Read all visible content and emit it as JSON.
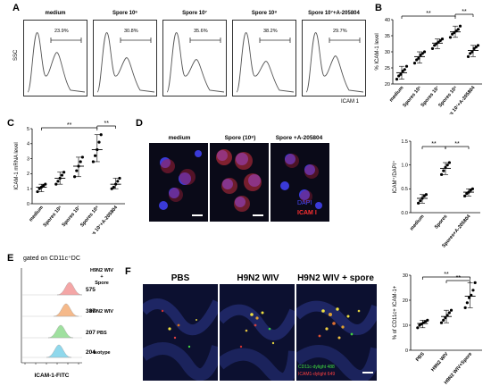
{
  "panels": {
    "A": "A",
    "B": "B",
    "C": "C",
    "D": "D",
    "E": "E",
    "F": "F"
  },
  "panelA": {
    "ylabel": "SSC",
    "xlabel": "ICAM 1",
    "plots": [
      {
        "title": "medium",
        "pct": "23.9%"
      },
      {
        "title": "Spore 10⁶",
        "pct": "30.8%"
      },
      {
        "title": "Spore 10⁷",
        "pct": "35.6%"
      },
      {
        "title": "Spore 10⁸",
        "pct": "38.2%"
      },
      {
        "title": "Spore 10⁷+A-205804",
        "pct": "29.7%"
      }
    ]
  },
  "panelB": {
    "ylabel": "% ICAM-1 level",
    "sig": [
      "**",
      "**"
    ],
    "yticks": [
      "20",
      "25",
      "30",
      "35",
      "40"
    ],
    "categories": [
      "medium",
      "Spores 10⁶",
      "Spores 10⁷",
      "Spores 10⁸",
      "Spores 10⁷+A-205804"
    ]
  },
  "panelC": {
    "ylabel": "ICAM-1 mRNA level",
    "sig": [
      "**",
      "**"
    ],
    "yticks": [
      "0",
      "1",
      "2",
      "3",
      "4",
      "5"
    ],
    "categories": [
      "medium",
      "Spores 10⁶",
      "Spores 10⁷",
      "Spores 10⁸",
      "Spores 10⁷+A-205804"
    ]
  },
  "panelD": {
    "titles": [
      "medium",
      "Spore (10⁸)",
      "Spore +A-205804"
    ],
    "legend_dapi": "DAPI",
    "legend_icam": "ICAM I",
    "ylabel": "ICAM⁺/DAPI⁺",
    "sig": [
      "**",
      "**"
    ],
    "yticks": [
      "0.0",
      "0.5",
      "1.0",
      "1.5"
    ],
    "categories": [
      "medium",
      "Spores",
      "Spores+A-205804"
    ]
  },
  "panelE": {
    "title": "gated on CD11c⁺DC",
    "xlabel": "ICAM-1-FITC",
    "rows": [
      {
        "value": "575",
        "label": "H9N2 WIV + Spore",
        "color": "#f4a6a6"
      },
      {
        "value": "387",
        "label": "H9N2 WIV",
        "color": "#f5b98a"
      },
      {
        "value": "207",
        "label": "PBS",
        "color": "#9fe09f"
      },
      {
        "value": "204",
        "label": "Isotype",
        "color": "#8fd8ec"
      }
    ]
  },
  "panelF": {
    "titles": [
      "PBS",
      "H9N2 WIV",
      "H9N2 WIV + spore"
    ],
    "legend_cd11c": "CD11c-dylight 488",
    "legend_icam": "ICAM1-dylight 649",
    "ylabel": "% of CD11c+ ICAM-1+",
    "sig": [
      "**",
      "**"
    ],
    "yticks": [
      "0",
      "10",
      "20",
      "30"
    ],
    "categories": [
      "PBS",
      "H9N2 WIV",
      "H9N2 WIV+Spore"
    ]
  },
  "chart_data": [
    {
      "type": "scatter",
      "panel": "B",
      "categories": [
        "medium",
        "Spores 10⁶",
        "Spores 10⁷",
        "Spores 10⁸",
        "Spores 10⁷+A-205804"
      ],
      "ylim": [
        20,
        40
      ],
      "points": [
        [
          21.5,
          22.5,
          23,
          24,
          24.5,
          25.5
        ],
        [
          26.5,
          27.5,
          28,
          29,
          29.5,
          30
        ],
        [
          31,
          32,
          32.5,
          33,
          33.5,
          34
        ],
        [
          34.5,
          35.5,
          36,
          36.5,
          37,
          38
        ],
        [
          28.5,
          29.5,
          30,
          31,
          31.5,
          32
        ]
      ],
      "means": [
        23.5,
        28.5,
        32.7,
        36.2,
        30.4
      ]
    },
    {
      "type": "scatter",
      "panel": "C",
      "categories": [
        "medium",
        "Spores 10⁶",
        "Spores 10⁷",
        "Spores 10⁸",
        "Spores 10⁷+A-205804"
      ],
      "ylim": [
        0,
        5
      ],
      "points": [
        [
          0.8,
          1.0,
          1.1,
          1.2,
          1.3
        ],
        [
          1.3,
          1.5,
          1.7,
          1.9,
          2.1
        ],
        [
          1.8,
          2.2,
          2.5,
          2.8,
          3.1
        ],
        [
          2.8,
          3.2,
          3.6,
          4.1,
          4.6
        ],
        [
          1.0,
          1.1,
          1.3,
          1.5,
          1.7
        ]
      ],
      "means": [
        1.1,
        1.7,
        2.5,
        3.6,
        1.3
      ]
    },
    {
      "type": "scatter",
      "panel": "D",
      "categories": [
        "medium",
        "Spores",
        "Spores+A-205804"
      ],
      "ylim": [
        0,
        1.5
      ],
      "points": [
        [
          0.2,
          0.25,
          0.3,
          0.35,
          0.38
        ],
        [
          0.8,
          0.88,
          0.95,
          1.0,
          1.05
        ],
        [
          0.35,
          0.4,
          0.43,
          0.47,
          0.5
        ]
      ],
      "means": [
        0.3,
        0.93,
        0.43
      ]
    },
    {
      "type": "scatter",
      "panel": "F",
      "categories": [
        "PBS",
        "H9N2 WIV",
        "H9N2 WIV+Spore"
      ],
      "ylim": [
        0,
        30
      ],
      "points": [
        [
          9,
          10,
          10.5,
          11,
          11.5,
          12
        ],
        [
          11,
          12,
          13,
          14,
          15,
          16
        ],
        [
          17,
          19,
          21,
          22,
          24,
          27
        ]
      ],
      "means": [
        10.7,
        13.5,
        21.6
      ]
    }
  ]
}
